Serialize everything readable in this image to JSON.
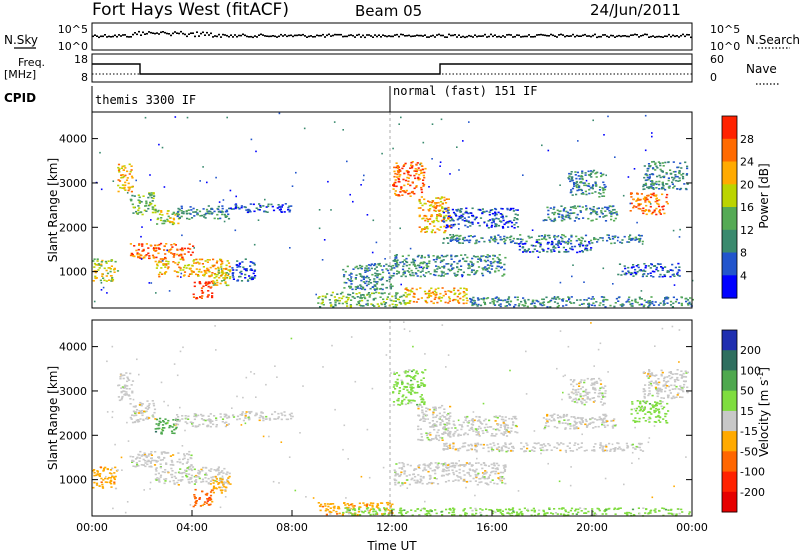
{
  "header": {
    "title": "Fort Hays West (fitACF)",
    "beam": "Beam 05",
    "date": "24/Jun/2011"
  },
  "side_labels": {
    "nsky": "N.Sky",
    "nsearch": "N.Search",
    "freq": "Freq.",
    "freq_unit": "[MHz]",
    "nave": "Nave",
    "cpid": "CPID"
  },
  "noise_panel": {
    "left_ticks": [
      "10^5",
      "10^0"
    ],
    "right_ticks": [
      "10^5",
      "10^0"
    ]
  },
  "freq_panel": {
    "left_ticks": [
      "18",
      "8"
    ],
    "right_ticks": [
      "60",
      "0"
    ]
  },
  "cpid_labels": [
    {
      "text": "themis 3300 IF",
      "start_hour": 0
    },
    {
      "text": "normal (fast) 151 IF",
      "start_hour": 12
    }
  ],
  "chart_data": [
    {
      "type": "heatmap",
      "panel": "power",
      "ylabel": "Slant Range [km]",
      "y_ticks": [
        "1000",
        "2000",
        "3000",
        "4000"
      ],
      "ylim": [
        180,
        4600
      ],
      "xlim": [
        0,
        24
      ],
      "colorbar": {
        "label": "Power [dB]",
        "ticks": [
          "4",
          "8",
          "12",
          "16",
          "20",
          "24",
          "28"
        ],
        "colors": [
          "#0000ff",
          "#2255cc",
          "#3a8a6e",
          "#55aa55",
          "#bbd400",
          "#ffaa00",
          "#ff6a00",
          "#ff2200"
        ]
      },
      "echo_regions": [
        {
          "x": [
            1.0,
            1.6
          ],
          "y": [
            2800,
            3450
          ],
          "level": 5
        },
        {
          "x": [
            1.5,
            2.5
          ],
          "y": [
            2300,
            2800
          ],
          "level": 3
        },
        {
          "x": [
            2.5,
            3.5
          ],
          "y": [
            2050,
            2400
          ],
          "level": 4
        },
        {
          "x": [
            3.3,
            5.5
          ],
          "y": [
            2200,
            2500
          ],
          "level": 2
        },
        {
          "x": [
            5.5,
            8.0
          ],
          "y": [
            2350,
            2550
          ],
          "level": 1
        },
        {
          "x": [
            1.5,
            4.0
          ],
          "y": [
            1300,
            1650
          ],
          "level": 6
        },
        {
          "x": [
            2.5,
            5.5
          ],
          "y": [
            900,
            1300
          ],
          "level": 5
        },
        {
          "x": [
            0.0,
            1.0
          ],
          "y": [
            800,
            1300
          ],
          "level": 4
        },
        {
          "x": [
            4.0,
            4.8
          ],
          "y": [
            400,
            800
          ],
          "level": 7
        },
        {
          "x": [
            4.8,
            5.5
          ],
          "y": [
            700,
            1100
          ],
          "level": 4
        },
        {
          "x": [
            5.5,
            6.5
          ],
          "y": [
            800,
            1300
          ],
          "level": 1
        },
        {
          "x": [
            10.0,
            12.0
          ],
          "y": [
            600,
            1200
          ],
          "level": 2
        },
        {
          "x": [
            12.0,
            13.3
          ],
          "y": [
            2700,
            3500
          ],
          "level": 6
        },
        {
          "x": [
            13.0,
            14.3
          ],
          "y": [
            1900,
            2700
          ],
          "level": 5
        },
        {
          "x": [
            14.0,
            17.0
          ],
          "y": [
            2000,
            2450
          ],
          "level": 1
        },
        {
          "x": [
            12.0,
            16.5
          ],
          "y": [
            900,
            1400
          ],
          "level": 2
        },
        {
          "x": [
            14.0,
            22.0
          ],
          "y": [
            1650,
            1850
          ],
          "level": 2
        },
        {
          "x": [
            17.0,
            20.0
          ],
          "y": [
            1450,
            1700
          ],
          "level": 1
        },
        {
          "x": [
            18.0,
            21.0
          ],
          "y": [
            2150,
            2500
          ],
          "level": 2
        },
        {
          "x": [
            19.0,
            20.5
          ],
          "y": [
            2700,
            3300
          ],
          "level": 2
        },
        {
          "x": [
            21.5,
            23.0
          ],
          "y": [
            2300,
            2800
          ],
          "level": 6
        },
        {
          "x": [
            22.0,
            23.8
          ],
          "y": [
            2850,
            3500
          ],
          "level": 2
        },
        {
          "x": [
            21.0,
            23.5
          ],
          "y": [
            900,
            1200
          ],
          "level": 1
        },
        {
          "x": [
            9.0,
            12.5
          ],
          "y": [
            220,
            550
          ],
          "level": 3
        },
        {
          "x": [
            12.5,
            15.0
          ],
          "y": [
            300,
            650
          ],
          "level": 5
        },
        {
          "x": [
            15.0,
            24.0
          ],
          "y": [
            220,
            450
          ],
          "level": 2
        }
      ]
    },
    {
      "type": "heatmap",
      "panel": "velocity",
      "ylabel": "Slant Range [km]",
      "xlabel": "Time UT",
      "x_ticks": [
        "00:00",
        "04:00",
        "08:00",
        "12:00",
        "16:00",
        "20:00",
        "00:00"
      ],
      "y_ticks": [
        "1000",
        "2000",
        "3000",
        "4000"
      ],
      "ylim": [
        180,
        4600
      ],
      "xlim": [
        0,
        24
      ],
      "colorbar": {
        "label": "Velocity [m s^-1]",
        "ticks": [
          "200",
          "100",
          "50",
          "15",
          "-15",
          "-50",
          "-100",
          "-200"
        ],
        "colors": [
          "#1f2fb0",
          "#2f6f5f",
          "#4ea84e",
          "#7fdd3f",
          "#c8c8c8",
          "#ffaa00",
          "#ff6600",
          "#ff2200",
          "#e60000"
        ]
      },
      "echo_regions": [
        {
          "x": [
            1.0,
            1.6
          ],
          "y": [
            2800,
            3450
          ],
          "cls": 4
        },
        {
          "x": [
            1.5,
            2.5
          ],
          "y": [
            2300,
            2800
          ],
          "cls": 4
        },
        {
          "x": [
            2.5,
            3.5
          ],
          "y": [
            2050,
            2400
          ],
          "cls": 2
        },
        {
          "x": [
            3.3,
            5.5
          ],
          "y": [
            2200,
            2500
          ],
          "cls": 4
        },
        {
          "x": [
            5.5,
            8.0
          ],
          "y": [
            2350,
            2550
          ],
          "cls": 4
        },
        {
          "x": [
            1.5,
            4.0
          ],
          "y": [
            1300,
            1650
          ],
          "cls": 4
        },
        {
          "x": [
            2.5,
            5.5
          ],
          "y": [
            900,
            1300
          ],
          "cls": 4
        },
        {
          "x": [
            0.0,
            1.0
          ],
          "y": [
            800,
            1300
          ],
          "cls": 5
        },
        {
          "x": [
            4.0,
            4.8
          ],
          "y": [
            400,
            800
          ],
          "cls": 6
        },
        {
          "x": [
            4.8,
            5.5
          ],
          "y": [
            700,
            1100
          ],
          "cls": 5
        },
        {
          "x": [
            12.0,
            13.3
          ],
          "y": [
            2700,
            3500
          ],
          "cls": 3
        },
        {
          "x": [
            13.0,
            14.3
          ],
          "y": [
            1900,
            2700
          ],
          "cls": 4
        },
        {
          "x": [
            14.0,
            17.0
          ],
          "y": [
            2000,
            2450
          ],
          "cls": 4
        },
        {
          "x": [
            12.0,
            16.5
          ],
          "y": [
            900,
            1400
          ],
          "cls": 4
        },
        {
          "x": [
            14.0,
            22.0
          ],
          "y": [
            1650,
            1850
          ],
          "cls": 4
        },
        {
          "x": [
            18.0,
            21.0
          ],
          "y": [
            2150,
            2500
          ],
          "cls": 4
        },
        {
          "x": [
            19.0,
            20.5
          ],
          "y": [
            2700,
            3300
          ],
          "cls": 4
        },
        {
          "x": [
            21.5,
            23.0
          ],
          "y": [
            2300,
            2800
          ],
          "cls": 3
        },
        {
          "x": [
            22.0,
            23.8
          ],
          "y": [
            2850,
            3500
          ],
          "cls": 4
        },
        {
          "x": [
            9.0,
            12.0
          ],
          "y": [
            220,
            500
          ],
          "cls": 5
        },
        {
          "x": [
            10.0,
            24.0
          ],
          "y": [
            200,
            380
          ],
          "cls": 3
        }
      ]
    }
  ]
}
